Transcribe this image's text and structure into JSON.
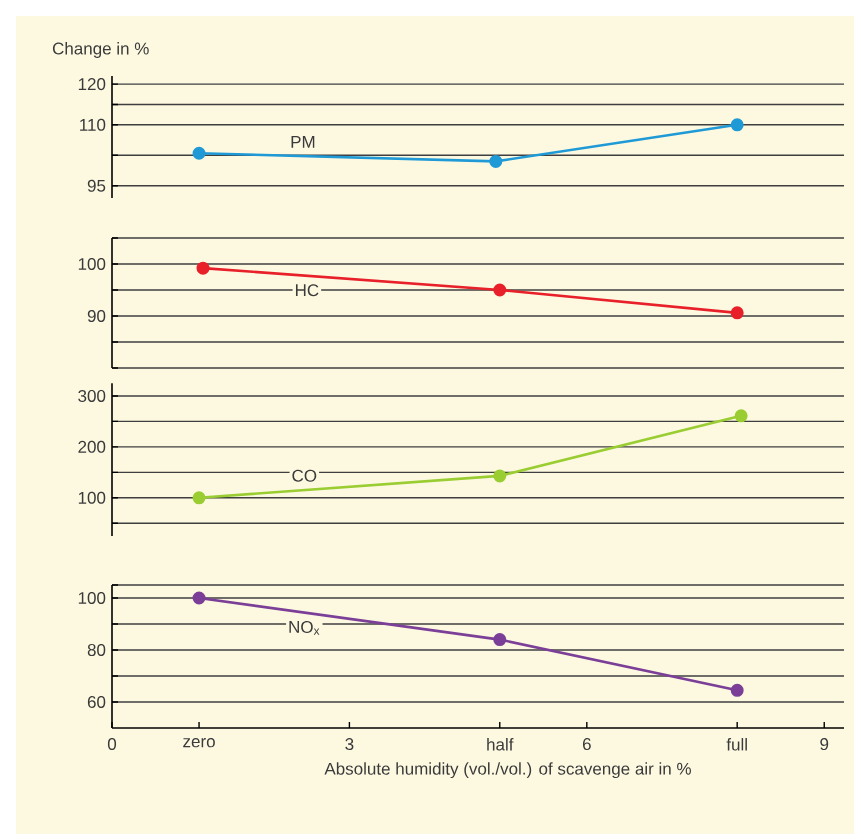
{
  "chart_data": [
    {
      "type": "line",
      "ylabel": "Change in %",
      "series": [
        {
          "name": "PM",
          "color": "#1f9ad6",
          "x": [
            1.1,
            4.85,
            7.9
          ],
          "values": [
            103,
            101,
            110
          ]
        }
      ],
      "xlim": [
        0,
        9.25
      ],
      "ylim": [
        92,
        122
      ],
      "yticks": [
        120,
        {
          "value": 115,
          "label": null
        },
        110,
        {
          "value": 102.5,
          "label": null
        },
        95
      ],
      "grid": "y",
      "marker": "circle",
      "tick_labels": "y"
    },
    {
      "type": "line",
      "series": [
        {
          "name": "HC",
          "color": "#e8202a",
          "x": [
            1.15,
            4.9,
            7.9
          ],
          "values": [
            99.2,
            95,
            90.6
          ]
        }
      ],
      "xlim": [
        0,
        9.25
      ],
      "ylim": [
        80,
        105
      ],
      "yticks": [
        {
          "value": 105,
          "label": null
        },
        100,
        {
          "value": 95,
          "label": null
        },
        90,
        {
          "value": 85,
          "label": null
        },
        {
          "value": 80,
          "label": null
        }
      ],
      "grid": "y",
      "marker": "circle",
      "tick_labels": "y"
    },
    {
      "type": "line",
      "series": [
        {
          "name": "CO",
          "color": "#9acd32",
          "x": [
            1.1,
            4.9,
            7.95
          ],
          "values": [
            100,
            143,
            261
          ]
        }
      ],
      "xlim": [
        0,
        9.25
      ],
      "ylim": [
        25,
        325
      ],
      "yticks": [
        300,
        {
          "value": 250,
          "label": null
        },
        200,
        {
          "value": 150,
          "label": null
        },
        100,
        {
          "value": 50,
          "label": null
        }
      ],
      "grid": "y",
      "marker": "circle",
      "tick_labels": "y"
    },
    {
      "type": "line",
      "xlabel": "Absolute humidity (vol./vol.) of scavenge air in %",
      "series": [
        {
          "name": "NO$_{x}$",
          "color": "#7b3f98",
          "x": [
            1.1,
            4.9,
            7.9
          ],
          "values": [
            100,
            84,
            64.5
          ]
        }
      ],
      "xlim": [
        0,
        9.25
      ],
      "ylim": [
        50,
        105
      ],
      "yticks": [
        {
          "value": 105,
          "label": null
        },
        100,
        {
          "value": 90,
          "label": null
        },
        80,
        {
          "value": 70,
          "label": null
        },
        60
      ],
      "xticks": [
        0,
        {
          "value": 1.1,
          "label": "zero"
        },
        3,
        {
          "value": 4.9,
          "label": "half"
        },
        6,
        {
          "value": 7.9,
          "label": "full"
        },
        9
      ],
      "grid": "y",
      "marker": "circle"
    }
  ]
}
